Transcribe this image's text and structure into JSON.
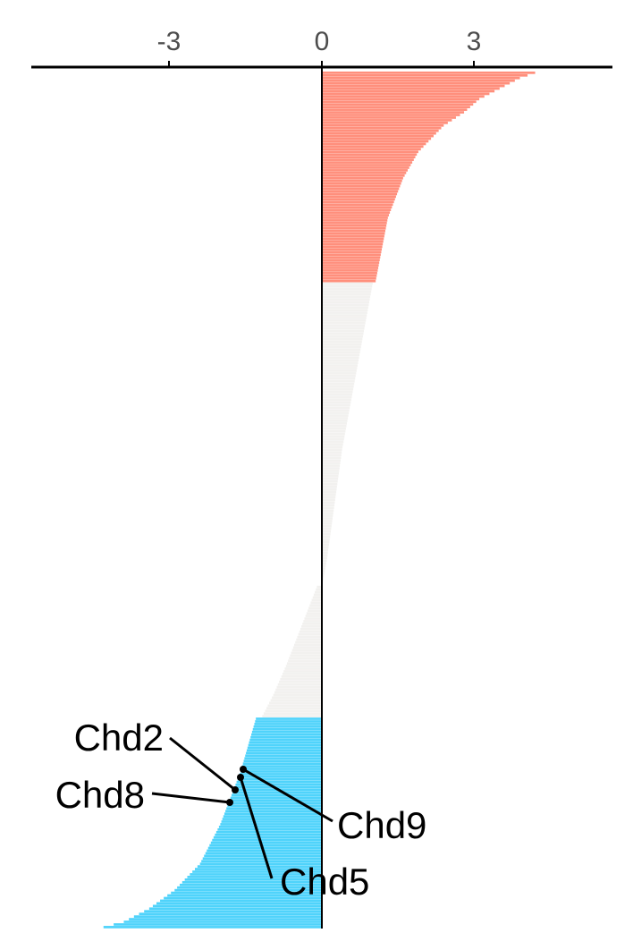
{
  "chart_data": {
    "type": "bar",
    "orientation": "horizontal",
    "sorted": "descending",
    "x_ticks": [
      -3,
      0,
      3
    ],
    "x_tick_labels": [
      "-3",
      "0",
      "3"
    ],
    "xlim": [
      -5.75,
      5.75
    ],
    "colors": {
      "up": "#ff8f7c",
      "neutral": "#f2f1ef",
      "down": "#4fd3fb",
      "axis": "#000000"
    },
    "group_counts": {
      "up": 80,
      "neutral": 165,
      "down": 80
    },
    "value_profile": {
      "up": [
        [
          0,
          4.2
        ],
        [
          2,
          3.9
        ],
        [
          5,
          3.6
        ],
        [
          10,
          3.1
        ],
        [
          15,
          2.8
        ],
        [
          20,
          2.4
        ],
        [
          30,
          1.9
        ],
        [
          40,
          1.6
        ],
        [
          55,
          1.3
        ],
        [
          70,
          1.15
        ],
        [
          80,
          1.05
        ]
      ],
      "neutral": [
        [
          0,
          1.0
        ],
        [
          30,
          0.8
        ],
        [
          60,
          0.6
        ],
        [
          90,
          0.4
        ],
        [
          120,
          0.25
        ],
        [
          150,
          0.1
        ],
        [
          165,
          0.0
        ]
      ],
      "neutral_neg": [
        [
          0,
          -0.1
        ],
        [
          40,
          -0.4
        ],
        [
          80,
          -0.7
        ],
        [
          110,
          -0.95
        ],
        [
          135,
          -1.2
        ]
      ],
      "down": [
        [
          0,
          -1.3
        ],
        [
          20,
          -1.6
        ],
        [
          40,
          -2.0
        ],
        [
          55,
          -2.4
        ],
        [
          65,
          -2.9
        ],
        [
          72,
          -3.4
        ],
        [
          77,
          -3.9
        ],
        [
          80,
          -4.5
        ]
      ]
    },
    "highlighted": [
      {
        "label": "Chd2",
        "value": -1.7
      },
      {
        "label": "Chd8",
        "value": -1.8
      },
      {
        "label": "Chd9",
        "value": -1.55
      },
      {
        "label": "Chd5",
        "value": -1.6
      }
    ]
  }
}
